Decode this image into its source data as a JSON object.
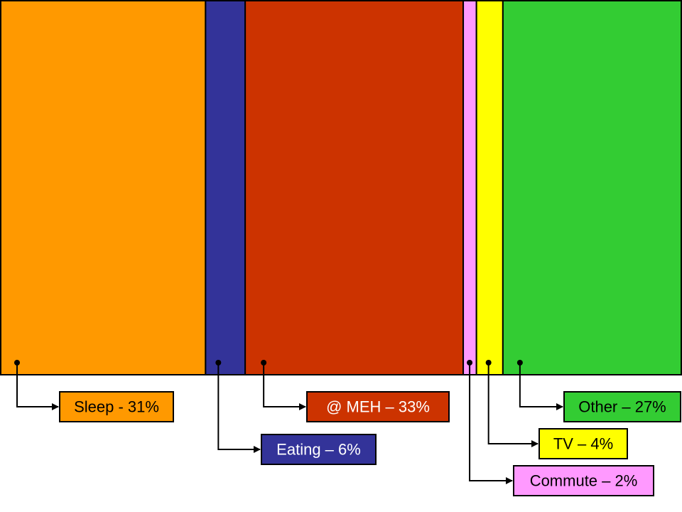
{
  "chart_data": {
    "type": "bar",
    "stacked": true,
    "orientation": "horizontal-100%",
    "categories": [
      "Sleep",
      "Eating",
      "@ MEH",
      "Commute",
      "TV",
      "Other"
    ],
    "values": [
      31,
      6,
      33,
      2,
      4,
      27
    ],
    "unit": "%",
    "series": [
      {
        "label": "Sleep - 31%",
        "value": 31,
        "color": "#FF9900",
        "text_color": "#000000"
      },
      {
        "label": "Eating – 6%",
        "value": 6,
        "color": "#333399",
        "text_color": "#FFFFFF"
      },
      {
        "label": "@ MEH – 33%",
        "value": 33,
        "color": "#CC3300",
        "text_color": "#FFFFFF"
      },
      {
        "label": "Commute – 2%",
        "value": 2,
        "color": "#FF99FF",
        "text_color": "#000000"
      },
      {
        "label": "TV – 4%",
        "value": 4,
        "color": "#FFFF00",
        "text_color": "#000000"
      },
      {
        "label": "Other – 27%",
        "value": 27,
        "color": "#33CC33",
        "text_color": "#000000"
      }
    ],
    "legend_placement": "bottom, callout labels",
    "grid": false
  }
}
